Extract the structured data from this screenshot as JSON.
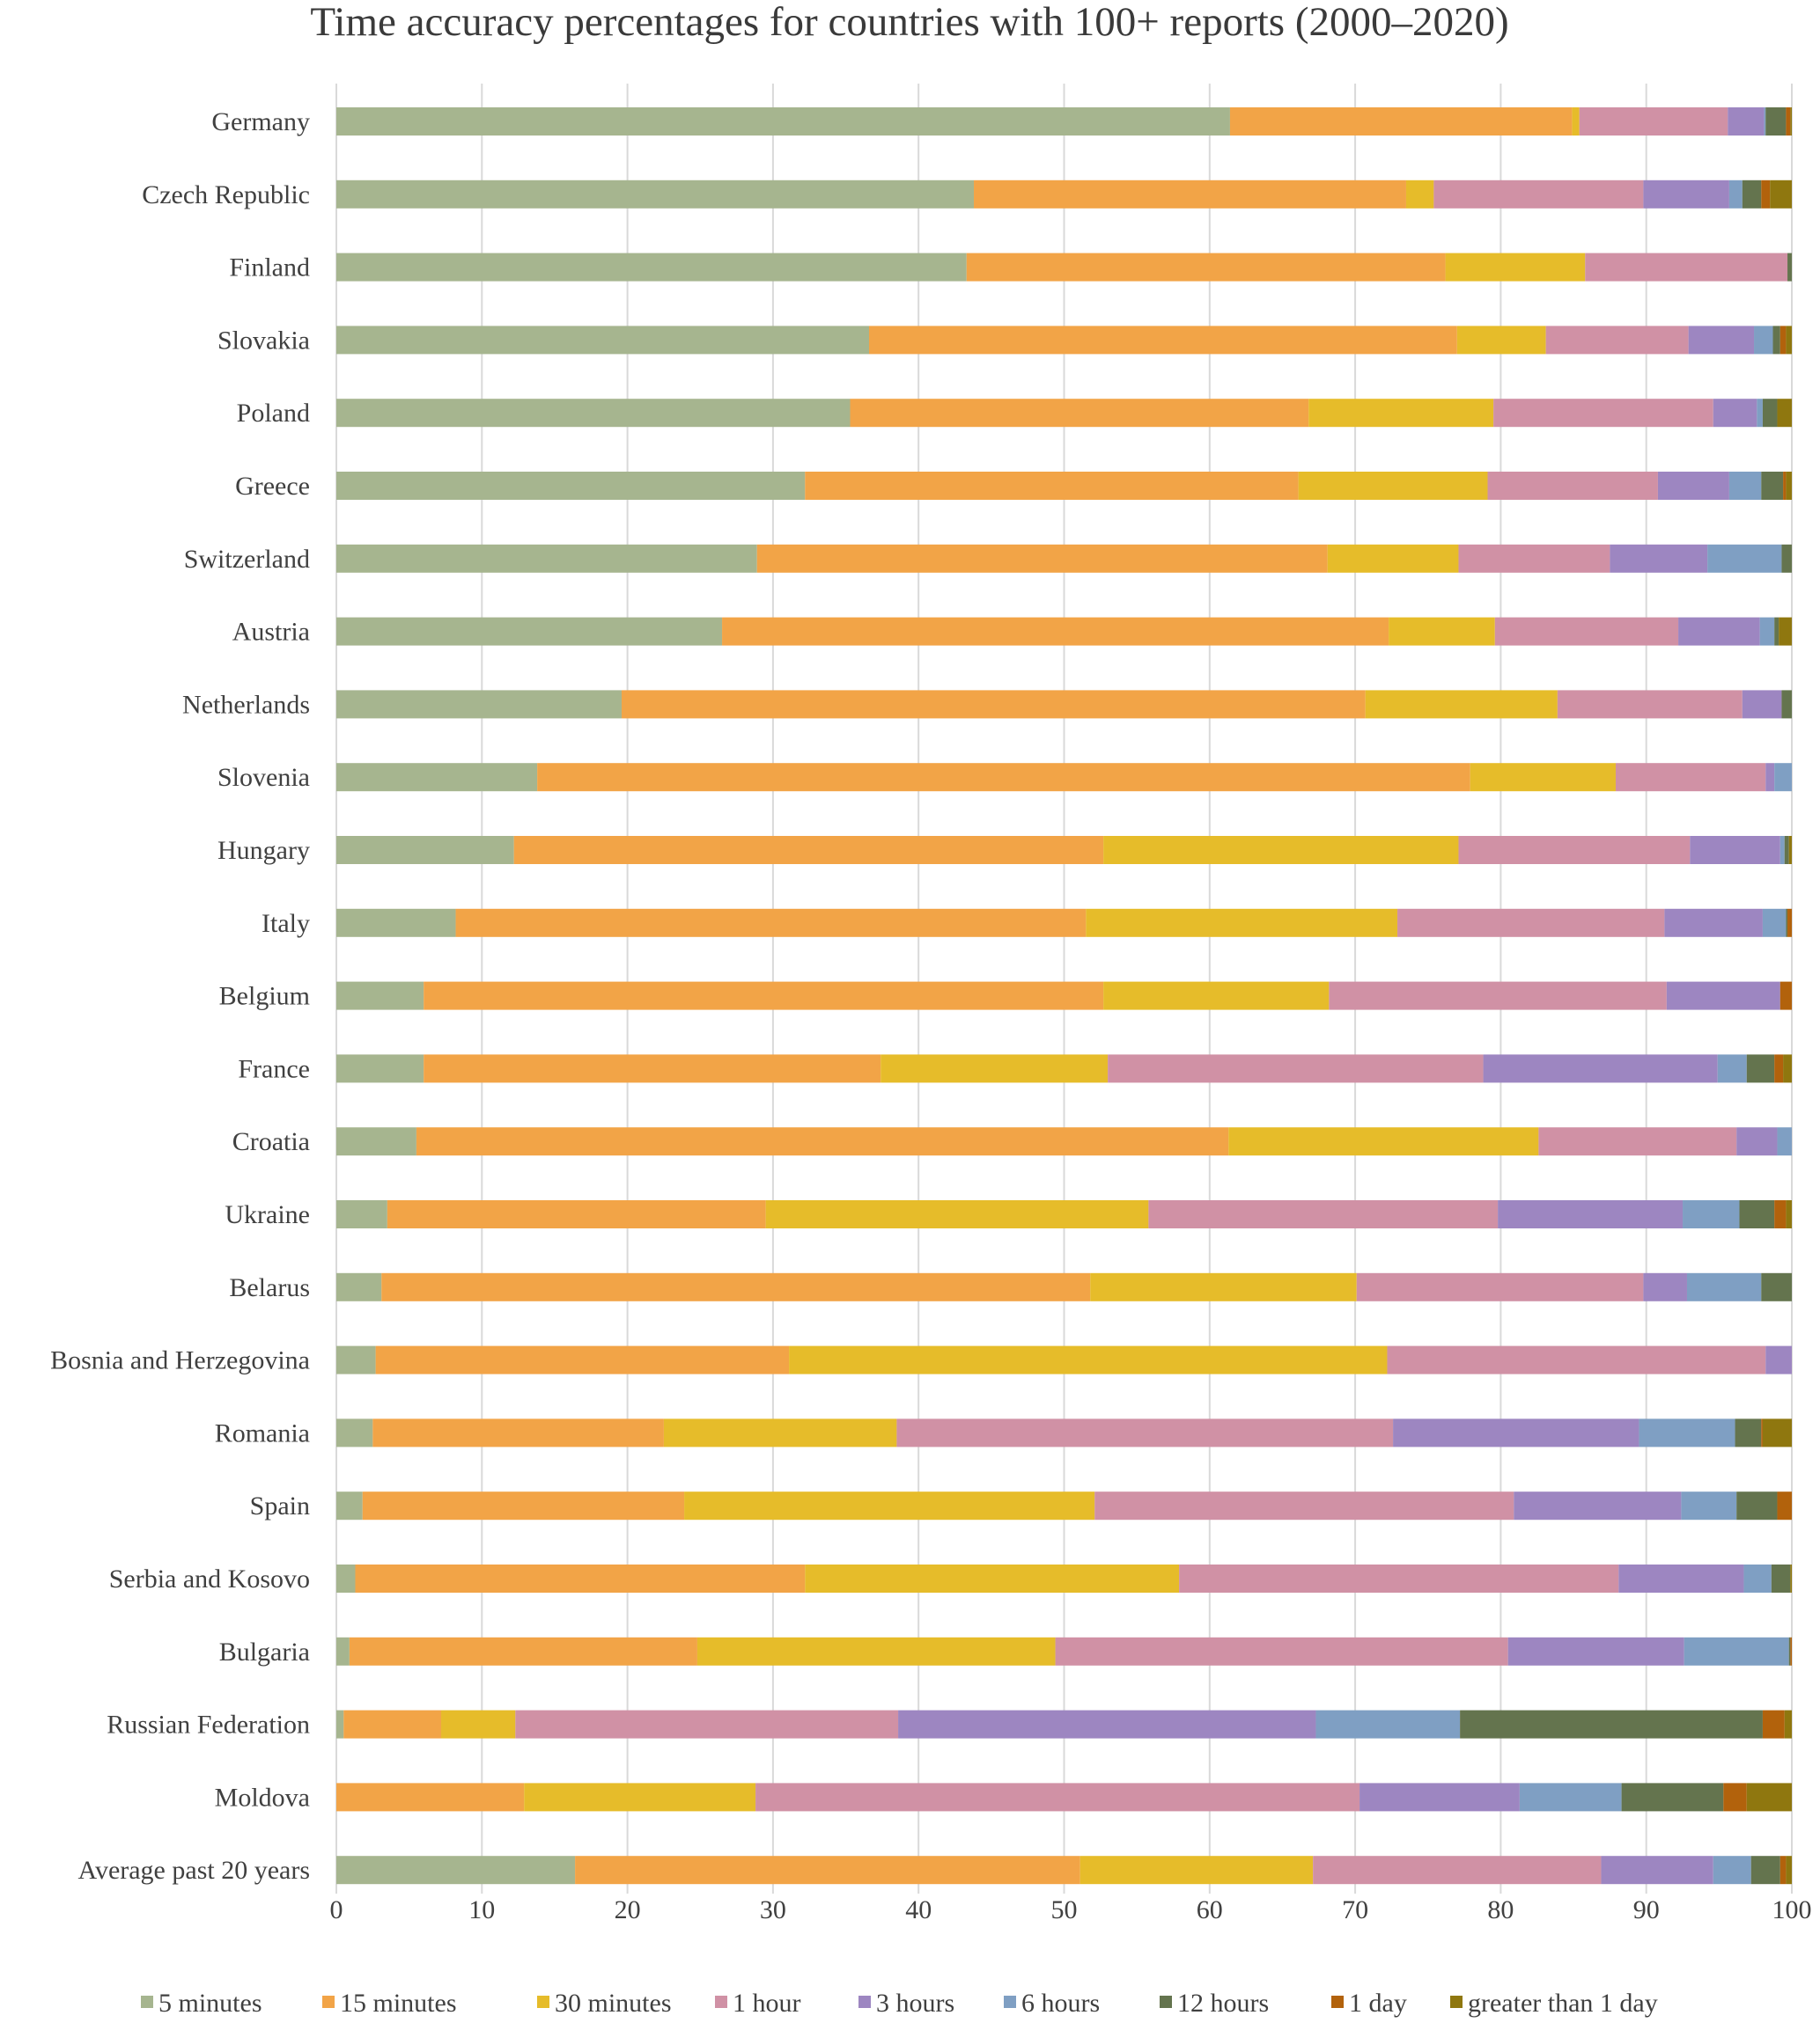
{
  "chart_data": {
    "type": "bar",
    "orientation": "horizontal",
    "stacked": true,
    "title": "Time accuracy percentages for countries with 100+ reports (2000–2020)",
    "xlabel": "",
    "ylabel": "",
    "xlim": [
      0,
      100
    ],
    "xticks": [
      "0",
      "10",
      "20",
      "30",
      "40",
      "50",
      "60",
      "70",
      "80",
      "90",
      "100"
    ],
    "grid": "vertical",
    "legend_position": "bottom",
    "categories": [
      "Germany",
      "Czech Republic",
      "Finland",
      "Slovakia",
      "Poland",
      "Greece",
      "Switzerland",
      "Austria",
      "Netherlands",
      "Slovenia",
      "Hungary",
      "Italy",
      "Belgium",
      "France",
      "Croatia",
      "Ukraine",
      "Belarus",
      "Bosnia and Herzegovina",
      "Romania",
      "Spain",
      "Serbia and Kosovo",
      "Bulgaria",
      "Russian Federation",
      "Moldova",
      "Average past 20 years"
    ],
    "series": [
      {
        "name": "5 minutes",
        "color": "#a6b58f",
        "values": [
          61.4,
          43.8,
          43.3,
          36.6,
          35.3,
          32.2,
          28.9,
          26.5,
          19.6,
          13.8,
          12.2,
          8.2,
          6.0,
          6.0,
          5.5,
          3.5,
          3.1,
          2.7,
          2.5,
          1.8,
          1.3,
          0.9,
          0.5,
          0,
          16.4
        ]
      },
      {
        "name": "15 minutes",
        "color": "#f2a447",
        "values": [
          23.5,
          29.7,
          32.9,
          40.4,
          31.5,
          33.9,
          39.2,
          45.8,
          51.1,
          64.1,
          40.5,
          43.3,
          46.7,
          31.4,
          55.8,
          26.0,
          48.7,
          28.4,
          20.0,
          22.1,
          30.9,
          23.9,
          6.7,
          12.9,
          34.7
        ]
      },
      {
        "name": "30 minutes",
        "color": "#e6bc2a",
        "values": [
          0.5,
          1.9,
          9.6,
          6.1,
          12.7,
          13.0,
          9.0,
          7.3,
          13.2,
          10.0,
          24.4,
          21.4,
          15.5,
          15.6,
          21.3,
          26.3,
          18.3,
          41.1,
          16.0,
          28.2,
          25.7,
          24.6,
          5.1,
          15.9,
          16.0
        ]
      },
      {
        "name": "1 hour",
        "color": "#d091a5",
        "values": [
          10.2,
          14.4,
          13.9,
          9.8,
          15.1,
          11.7,
          10.4,
          12.6,
          12.7,
          10.3,
          15.9,
          18.35,
          23.2,
          25.8,
          13.6,
          24.0,
          19.7,
          26.0,
          34.1,
          28.8,
          30.2,
          31.1,
          26.3,
          41.5,
          19.8
        ]
      },
      {
        "name": "3 hours",
        "color": "#9d86c1",
        "values": [
          2.5,
          5.9,
          0,
          4.5,
          3.0,
          4.9,
          6.7,
          5.6,
          2.7,
          0.6,
          6.2,
          6.75,
          7.8,
          16.1,
          2.8,
          12.7,
          3.0,
          1.8,
          16.9,
          11.5,
          8.6,
          12.1,
          28.7,
          11.0,
          7.7
        ]
      },
      {
        "name": "6 hours",
        "color": "#7f9fc3",
        "values": [
          0.1,
          0.9,
          0,
          1.3,
          0.4,
          2.2,
          5.1,
          1.0,
          0,
          1.2,
          0.3,
          1.6,
          0,
          2.0,
          1.0,
          3.9,
          5.1,
          0,
          6.6,
          3.8,
          1.9,
          7.2,
          9.9,
          7.0,
          2.6
        ]
      },
      {
        "name": "12 hours",
        "color": "#64744e",
        "values": [
          1.4,
          1.3,
          0.3,
          0.5,
          1.0,
          1.5,
          0.7,
          0.3,
          0.7,
          0,
          0.3,
          0.1,
          0,
          1.9,
          0,
          2.4,
          2.1,
          0,
          1.8,
          2.8,
          1.3,
          0.1,
          20.8,
          7.0,
          2.0
        ]
      },
      {
        "name": "1 day",
        "color": "#b2620c",
        "values": [
          0.3,
          0.6,
          0,
          0.4,
          0,
          0.2,
          0,
          0,
          0,
          0,
          0,
          0.3,
          0.8,
          0.6,
          0,
          0.8,
          0,
          0,
          0.1,
          1.0,
          0,
          0.1,
          1.5,
          1.6,
          0.4
        ]
      },
      {
        "name": "greater than 1 day",
        "color": "#8f770f",
        "values": [
          0.1,
          1.5,
          0,
          0.4,
          1.0,
          0.4,
          0,
          0.9,
          0,
          0,
          0.2,
          0,
          0,
          0.6,
          0,
          0.4,
          0,
          0,
          2.0,
          0,
          0.1,
          0,
          0.5,
          3.1,
          0.4
        ]
      }
    ]
  }
}
